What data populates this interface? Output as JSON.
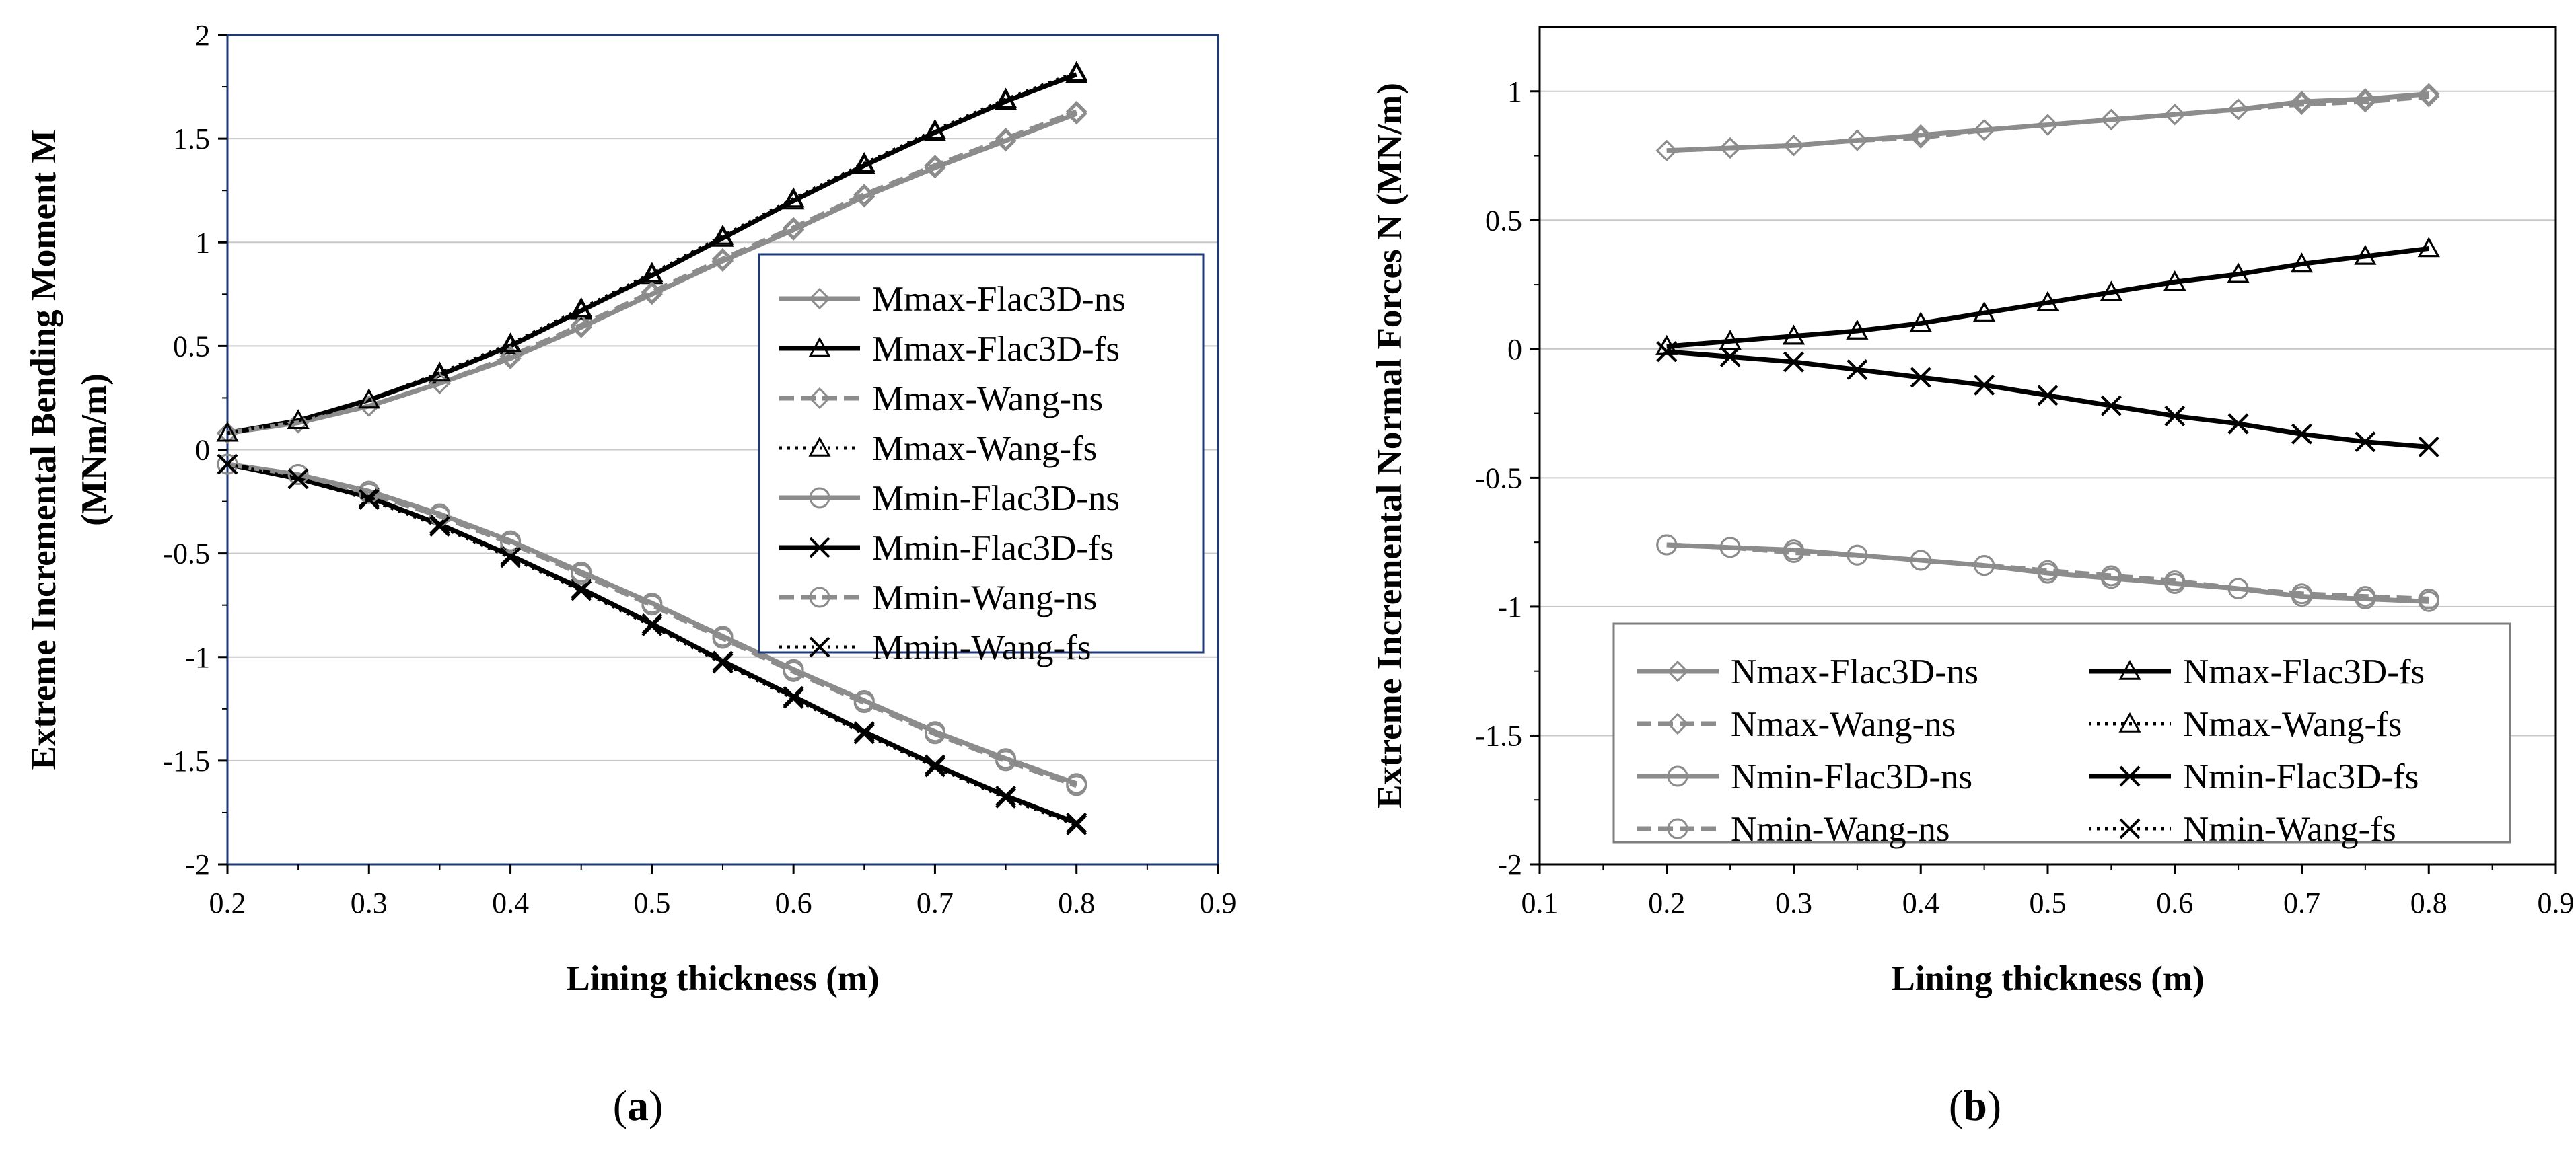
{
  "chart_data": [
    {
      "type": "line",
      "panel_label": "(a)",
      "panel_label_parts": [
        "(",
        "a",
        ")"
      ],
      "title": "",
      "xlabel": "Lining thickness (m)",
      "ylabel": "Extreme Incremental Bending Moment M",
      "ylabel_line2": "(MNm/m)",
      "xlim": [
        0.2,
        0.9
      ],
      "ylim": [
        -2,
        2
      ],
      "xticks": [
        "0.2",
        "0.3",
        "0.4",
        "0.5",
        "0.6",
        "0.7",
        "0.8",
        "0.9"
      ],
      "yticks": [
        "2",
        "1.5",
        "1",
        "0.5",
        "0",
        "-0.5",
        "-1",
        "-1.5",
        "-2"
      ],
      "grid": "horizontal",
      "legend_position": "right-center",
      "x": [
        0.2,
        0.25,
        0.3,
        0.35,
        0.4,
        0.45,
        0.5,
        0.55,
        0.6,
        0.65,
        0.7,
        0.75,
        0.8
      ],
      "series": [
        {
          "name": "Mmax-Flac3D-ns",
          "color": "#8c8c8c",
          "dash": "solid",
          "marker": "diamond",
          "values": [
            0.08,
            0.13,
            0.21,
            0.32,
            0.44,
            0.59,
            0.75,
            0.91,
            1.06,
            1.22,
            1.36,
            1.49,
            1.62
          ]
        },
        {
          "name": "Mmax-Flac3D-fs",
          "color": "#000000",
          "dash": "solid",
          "marker": "triangle",
          "values": [
            0.08,
            0.14,
            0.24,
            0.36,
            0.5,
            0.67,
            0.84,
            1.02,
            1.2,
            1.37,
            1.53,
            1.68,
            1.81
          ]
        },
        {
          "name": "Mmax-Wang-ns",
          "color": "#8c8c8c",
          "dash": "dashed",
          "marker": "diamond",
          "values": [
            0.08,
            0.13,
            0.21,
            0.32,
            0.45,
            0.6,
            0.76,
            0.92,
            1.07,
            1.23,
            1.37,
            1.5,
            1.63
          ]
        },
        {
          "name": "Mmax-Wang-fs",
          "color": "#000000",
          "dash": "dotted",
          "marker": "triangle",
          "values": [
            0.08,
            0.14,
            0.24,
            0.37,
            0.51,
            0.68,
            0.85,
            1.03,
            1.21,
            1.38,
            1.54,
            1.69,
            1.82
          ]
        },
        {
          "name": "Mmin-Flac3D-ns",
          "color": "#8c8c8c",
          "dash": "solid",
          "marker": "circle",
          "values": [
            -0.07,
            -0.12,
            -0.2,
            -0.31,
            -0.44,
            -0.59,
            -0.74,
            -0.9,
            -1.06,
            -1.21,
            -1.36,
            -1.49,
            -1.61
          ]
        },
        {
          "name": "Mmin-Flac3D-fs",
          "color": "#000000",
          "dash": "solid",
          "marker": "x",
          "values": [
            -0.07,
            -0.14,
            -0.23,
            -0.36,
            -0.51,
            -0.67,
            -0.84,
            -1.02,
            -1.19,
            -1.36,
            -1.52,
            -1.67,
            -1.8
          ]
        },
        {
          "name": "Mmin-Wang-ns",
          "color": "#8c8c8c",
          "dash": "dashed",
          "marker": "circle",
          "values": [
            -0.07,
            -0.12,
            -0.21,
            -0.32,
            -0.45,
            -0.6,
            -0.75,
            -0.91,
            -1.07,
            -1.22,
            -1.37,
            -1.5,
            -1.62
          ]
        },
        {
          "name": "Mmin-Wang-fs",
          "color": "#000000",
          "dash": "dotted",
          "marker": "x",
          "values": [
            -0.07,
            -0.14,
            -0.24,
            -0.37,
            -0.52,
            -0.68,
            -0.85,
            -1.03,
            -1.2,
            -1.37,
            -1.53,
            -1.68,
            -1.81
          ]
        }
      ]
    },
    {
      "type": "line",
      "panel_label": "(b)",
      "panel_label_parts": [
        "(",
        "b",
        ")"
      ],
      "title": "",
      "xlabel": "Lining thickness (m)",
      "ylabel": "Extreme Incremental Normal Forces N (MN/m)",
      "xlim": [
        0.1,
        0.9
      ],
      "ylim": [
        -2,
        1.25
      ],
      "xticks": [
        "0.1",
        "0.2",
        "0.3",
        "0.4",
        "0.5",
        "0.6",
        "0.7",
        "0.8",
        "0.9"
      ],
      "yticks": [
        "1",
        "0.5",
        "0",
        "-0.5",
        "-1",
        "-1.5",
        "-2"
      ],
      "grid": "horizontal",
      "legend_position": "bottom",
      "x": [
        0.2,
        0.25,
        0.3,
        0.35,
        0.4,
        0.45,
        0.5,
        0.55,
        0.6,
        0.65,
        0.7,
        0.75,
        0.8
      ],
      "series": [
        {
          "name": "Nmax-Flac3D-ns",
          "color": "#8c8c8c",
          "dash": "solid",
          "marker": "diamond",
          "values": [
            0.77,
            0.78,
            0.79,
            0.81,
            0.83,
            0.85,
            0.87,
            0.89,
            0.91,
            0.93,
            0.96,
            0.97,
            0.99
          ]
        },
        {
          "name": "Nmax-Flac3D-fs",
          "color": "#000000",
          "dash": "solid",
          "marker": "triangle",
          "values": [
            0.01,
            0.03,
            0.05,
            0.07,
            0.1,
            0.14,
            0.18,
            0.22,
            0.26,
            0.29,
            0.33,
            0.36,
            0.39
          ]
        },
        {
          "name": "Nmax-Wang-ns",
          "color": "#8c8c8c",
          "dash": "dashed",
          "marker": "diamond",
          "values": [
            0.77,
            0.78,
            0.79,
            0.81,
            0.82,
            0.85,
            0.87,
            0.89,
            0.91,
            0.93,
            0.95,
            0.96,
            0.98
          ]
        },
        {
          "name": "Nmax-Wang-fs",
          "color": "#000000",
          "dash": "dotted",
          "marker": "triangle",
          "values": [
            0.01,
            0.03,
            0.05,
            0.07,
            0.1,
            0.14,
            0.18,
            0.22,
            0.26,
            0.29,
            0.33,
            0.36,
            0.39
          ]
        },
        {
          "name": "Nmin-Flac3D-ns",
          "color": "#8c8c8c",
          "dash": "solid",
          "marker": "circle",
          "values": [
            -0.76,
            -0.77,
            -0.78,
            -0.8,
            -0.82,
            -0.84,
            -0.87,
            -0.89,
            -0.91,
            -0.93,
            -0.96,
            -0.97,
            -0.98
          ]
        },
        {
          "name": "Nmin-Flac3D-fs",
          "color": "#000000",
          "dash": "solid",
          "marker": "x",
          "values": [
            -0.01,
            -0.03,
            -0.05,
            -0.08,
            -0.11,
            -0.14,
            -0.18,
            -0.22,
            -0.26,
            -0.29,
            -0.33,
            -0.36,
            -0.38
          ]
        },
        {
          "name": "Nmin-Wang-ns",
          "color": "#8c8c8c",
          "dash": "dashed",
          "marker": "circle",
          "values": [
            -0.76,
            -0.77,
            -0.79,
            -0.8,
            -0.82,
            -0.84,
            -0.86,
            -0.88,
            -0.9,
            -0.93,
            -0.95,
            -0.96,
            -0.97
          ]
        },
        {
          "name": "Nmin-Wang-fs",
          "color": "#000000",
          "dash": "dotted",
          "marker": "x",
          "values": [
            -0.01,
            -0.03,
            -0.05,
            -0.08,
            -0.11,
            -0.14,
            -0.18,
            -0.22,
            -0.26,
            -0.29,
            -0.33,
            -0.36,
            -0.38
          ]
        }
      ]
    }
  ]
}
